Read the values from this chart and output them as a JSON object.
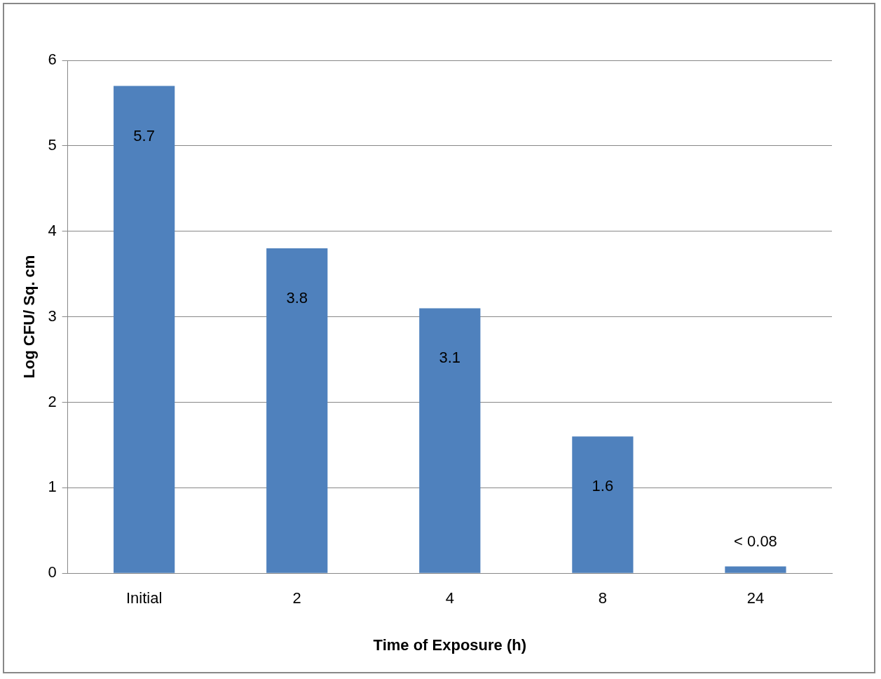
{
  "chart_data": {
    "type": "bar",
    "xlabel": "Time of Exposure (h)",
    "ylabel": "Log CFU/ Sq. cm",
    "categories": [
      "Initial",
      "2",
      "4",
      "8",
      "24"
    ],
    "values": [
      5.7,
      3.8,
      3.1,
      1.6,
      0.08
    ],
    "value_labels": [
      "5.7",
      "3.8",
      "3.1",
      "1.6",
      "< 0.08"
    ],
    "color": "#4f81bd",
    "ylim": [
      0,
      6
    ],
    "yticks": [
      0,
      1,
      2,
      3,
      4,
      5,
      6
    ],
    "grid": "y",
    "legend": false
  }
}
